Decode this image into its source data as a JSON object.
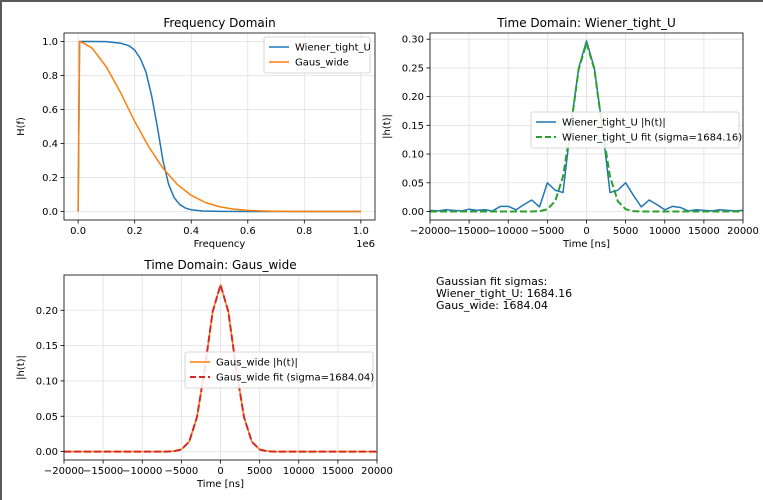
{
  "chart_data": [
    {
      "type": "line",
      "title": "Frequency Domain",
      "xlabel": "Frequency",
      "ylabel": "H(f)",
      "x_offset_label": "1e6",
      "xlim": [
        -0.05,
        1.05
      ],
      "ylim": [
        -0.05,
        1.05
      ],
      "x_ticks": [
        0.0,
        0.2,
        0.4,
        0.6,
        0.8,
        1.0
      ],
      "x_tick_labels": [
        "0.0",
        "0.2",
        "0.4",
        "0.6",
        "0.8",
        "1.0"
      ],
      "y_ticks": [
        0.0,
        0.2,
        0.4,
        0.6,
        0.8,
        1.0
      ],
      "y_tick_labels": [
        "0.0",
        "0.2",
        "0.4",
        "0.6",
        "0.8",
        "1.0"
      ],
      "grid": true,
      "legend_position": "top-right",
      "series": [
        {
          "name": "Wiener_tight_U",
          "color": "#1f77b4",
          "style": "solid",
          "x": [
            0,
            0.005,
            0.02,
            0.05,
            0.1,
            0.15,
            0.18,
            0.2,
            0.22,
            0.24,
            0.26,
            0.28,
            0.3,
            0.32,
            0.34,
            0.36,
            0.38,
            0.4,
            0.44,
            0.5,
            0.6,
            0.8,
            1.0
          ],
          "y": [
            0.0,
            1.0,
            1.0,
            1.0,
            0.999,
            0.99,
            0.975,
            0.95,
            0.9,
            0.82,
            0.68,
            0.5,
            0.3,
            0.16,
            0.08,
            0.04,
            0.02,
            0.01,
            0.003,
            0.001,
            0.0,
            0.0,
            0.0
          ]
        },
        {
          "name": "Gaus_wide",
          "color": "#ff7f0e",
          "style": "solid",
          "x": [
            0,
            0.005,
            0.02,
            0.05,
            0.1,
            0.15,
            0.2,
            0.25,
            0.3,
            0.35,
            0.4,
            0.45,
            0.5,
            0.55,
            0.6,
            0.65,
            0.7,
            0.8,
            0.9,
            1.0
          ],
          "y": [
            0.0,
            1.0,
            0.99,
            0.96,
            0.85,
            0.7,
            0.53,
            0.38,
            0.255,
            0.16,
            0.095,
            0.053,
            0.028,
            0.014,
            0.0065,
            0.003,
            0.0013,
            0.0002,
            0.0,
            0.0
          ]
        }
      ]
    },
    {
      "type": "line",
      "title": "Time Domain: Wiener_tight_U",
      "xlabel": "Time [ns]",
      "ylabel": "|h(t)|",
      "xlim": [
        -20000,
        20000
      ],
      "ylim": [
        -0.0148,
        0.3108
      ],
      "x_ticks": [
        -20000,
        -15000,
        -10000,
        -5000,
        0,
        5000,
        10000,
        15000,
        20000
      ],
      "x_tick_labels": [
        "−20000",
        "−15000",
        "−10000",
        "−5000",
        "0",
        "5000",
        "10000",
        "15000",
        "20000"
      ],
      "y_ticks": [
        0.0,
        0.05,
        0.1,
        0.15,
        0.2,
        0.25,
        0.3
      ],
      "y_tick_labels": [
        "0.00",
        "0.05",
        "0.10",
        "0.15",
        "0.20",
        "0.25",
        "0.30"
      ],
      "grid": true,
      "legend_position": "center-right",
      "series": [
        {
          "name": "Wiener_tight_U |h(t)|",
          "color": "#1f77b4",
          "style": "solid",
          "x": [
            -20000,
            -19000,
            -18000,
            -17000,
            -16000,
            -15000,
            -14000,
            -13000,
            -12000,
            -11000,
            -10000,
            -9000,
            -8000,
            -7000,
            -6000,
            -5000,
            -4000,
            -3000,
            -2000,
            -1000,
            0,
            1000,
            2000,
            3000,
            4000,
            5000,
            6000,
            7000,
            8000,
            9000,
            10000,
            11000,
            12000,
            13000,
            14000,
            15000,
            16000,
            17000,
            18000,
            19000,
            20000
          ],
          "y": [
            0.002,
            0.001,
            0.003,
            0.002,
            0.001,
            0.004,
            0.002,
            0.003,
            0.001,
            0.009,
            0.009,
            0.003,
            0.012,
            0.02,
            0.008,
            0.05,
            0.037,
            0.033,
            0.15,
            0.25,
            0.297,
            0.25,
            0.15,
            0.033,
            0.037,
            0.05,
            0.028,
            0.008,
            0.02,
            0.012,
            0.003,
            0.009,
            0.007,
            0.001,
            0.003,
            0.002,
            0.001,
            0.003,
            0.002,
            0.001,
            0.002
          ]
        },
        {
          "name": "Wiener_tight_U fit (sigma=1684.16)",
          "color": "#2ca02c",
          "style": "dashed",
          "x": [
            -20000,
            -19000,
            -18000,
            -17000,
            -16000,
            -15000,
            -14000,
            -13000,
            -12000,
            -11000,
            -10000,
            -9000,
            -8000,
            -7000,
            -6000,
            -5000,
            -4000,
            -3000,
            -2000,
            -1000,
            0,
            1000,
            2000,
            3000,
            4000,
            5000,
            6000,
            7000,
            8000,
            9000,
            10000,
            11000,
            12000,
            13000,
            14000,
            15000,
            16000,
            17000,
            18000,
            19000,
            20000
          ],
          "y": [
            0,
            0,
            0,
            0,
            0,
            0,
            0,
            0,
            0,
            0,
            0,
            0,
            0,
            0,
            0.0005,
            0.004,
            0.018,
            0.061,
            0.147,
            0.248,
            0.293,
            0.248,
            0.147,
            0.061,
            0.018,
            0.004,
            0.0005,
            0,
            0,
            0,
            0,
            0,
            0,
            0,
            0,
            0,
            0,
            0,
            0,
            0,
            0
          ]
        }
      ]
    },
    {
      "type": "line",
      "title": "Time Domain: Gaus_wide",
      "xlabel": "Time [ns]",
      "ylabel": "|h(t)|",
      "xlim": [
        -20000,
        20000
      ],
      "ylim": [
        -0.0119,
        0.2499
      ],
      "x_ticks": [
        -20000,
        -15000,
        -10000,
        -5000,
        0,
        5000,
        10000,
        15000,
        20000
      ],
      "x_tick_labels": [
        "−20000",
        "−15000",
        "−10000",
        "−5000",
        "0",
        "5000",
        "10000",
        "15000",
        "20000"
      ],
      "y_ticks": [
        0.0,
        0.05,
        0.1,
        0.15,
        0.2
      ],
      "y_tick_labels": [
        "0.00",
        "0.05",
        "0.10",
        "0.15",
        "0.20"
      ],
      "grid": true,
      "legend_position": "center-right",
      "series": [
        {
          "name": "Gaus_wide |h(t)|",
          "color": "#ff7f0e",
          "style": "solid",
          "x": [
            -20000,
            -19000,
            -18000,
            -17000,
            -16000,
            -15000,
            -14000,
            -13000,
            -12000,
            -11000,
            -10000,
            -9000,
            -8000,
            -7000,
            -6000,
            -5000,
            -4000,
            -3000,
            -2000,
            -1000,
            0,
            1000,
            2000,
            3000,
            4000,
            5000,
            6000,
            7000,
            8000,
            9000,
            10000,
            11000,
            12000,
            13000,
            14000,
            15000,
            16000,
            17000,
            18000,
            19000,
            20000
          ],
          "y": [
            0,
            0,
            0,
            0,
            0,
            0,
            0,
            0,
            0,
            0,
            0,
            0,
            0,
            0,
            0.0004,
            0.003,
            0.014,
            0.049,
            0.118,
            0.198,
            0.236,
            0.198,
            0.118,
            0.049,
            0.014,
            0.003,
            0.0004,
            0,
            0,
            0,
            0,
            0,
            0,
            0,
            0,
            0,
            0,
            0,
            0,
            0,
            0
          ]
        },
        {
          "name": "Gaus_wide fit (sigma=1684.04)",
          "color": "#d62728",
          "style": "dashed",
          "x": [
            -20000,
            -19000,
            -18000,
            -17000,
            -16000,
            -15000,
            -14000,
            -13000,
            -12000,
            -11000,
            -10000,
            -9000,
            -8000,
            -7000,
            -6000,
            -5000,
            -4000,
            -3000,
            -2000,
            -1000,
            0,
            1000,
            2000,
            3000,
            4000,
            5000,
            6000,
            7000,
            8000,
            9000,
            10000,
            11000,
            12000,
            13000,
            14000,
            15000,
            16000,
            17000,
            18000,
            19000,
            20000
          ],
          "y": [
            0,
            0,
            0,
            0,
            0,
            0,
            0,
            0,
            0,
            0,
            0,
            0,
            0,
            0,
            0.0004,
            0.003,
            0.014,
            0.049,
            0.118,
            0.198,
            0.236,
            0.198,
            0.118,
            0.049,
            0.014,
            0.003,
            0.0004,
            0,
            0,
            0,
            0,
            0,
            0,
            0,
            0,
            0,
            0,
            0,
            0,
            0,
            0
          ]
        }
      ]
    }
  ],
  "note": {
    "heading": "Gaussian fit sigmas:",
    "lines": [
      "Wiener_tight_U: 1684.16",
      "Gaus_wide: 1684.04"
    ]
  }
}
